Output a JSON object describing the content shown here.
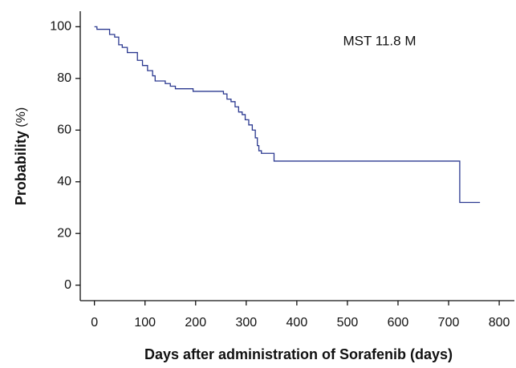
{
  "chart_data": {
    "type": "step",
    "x_label": "Days after administration of Sorafenib (days)",
    "y_label": "Probability",
    "y_label_unit": "(%)",
    "annotation": "MST 11.8 M",
    "color": "#2b3990",
    "x": [
      0,
      5,
      30,
      40,
      48,
      55,
      65,
      85,
      95,
      105,
      115,
      120,
      140,
      150,
      160,
      195,
      255,
      262,
      270,
      278,
      285,
      292,
      298,
      305,
      312,
      318,
      322,
      325,
      330,
      355,
      722,
      762
    ],
    "values": [
      100,
      99,
      97,
      96,
      93,
      92,
      90,
      87,
      85,
      83,
      81,
      79,
      78,
      77,
      76,
      75,
      74,
      72,
      71,
      69,
      67,
      66,
      64,
      62,
      60,
      57,
      54,
      52,
      51,
      48,
      32,
      32
    ],
    "xlim": [
      -28,
      830
    ],
    "ylim": [
      -6,
      106
    ],
    "xticks": [
      0,
      100,
      200,
      300,
      400,
      500,
      600,
      700,
      800
    ],
    "yticks": [
      0,
      20,
      40,
      60,
      80,
      100
    ]
  }
}
